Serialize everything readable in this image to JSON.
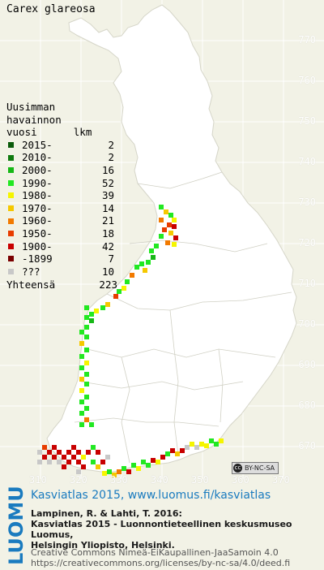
{
  "title": "Carex glareosa",
  "legend": {
    "header": [
      "Uusimman",
      "havainnon",
      "vuosi      lkm"
    ],
    "rows": [
      {
        "label": "2015-",
        "count": "2",
        "color": "#0a5a0a"
      },
      {
        "label": "2010-",
        "count": "2",
        "color": "#0f7a0f"
      },
      {
        "label": "2000-",
        "count": "16",
        "color": "#16b816"
      },
      {
        "label": "1990-",
        "count": "52",
        "color": "#22e822"
      },
      {
        "label": "1980-",
        "count": "39",
        "color": "#f5f500"
      },
      {
        "label": "1970-",
        "count": "14",
        "color": "#f5c800"
      },
      {
        "label": "1960-",
        "count": "21",
        "color": "#f27a00"
      },
      {
        "label": "1950-",
        "count": "18",
        "color": "#e83c00"
      },
      {
        "label": "1900-",
        "count": "42",
        "color": "#c80000"
      },
      {
        "label": "-1899",
        "count": "7",
        "color": "#7a0000"
      },
      {
        "label": "???",
        "count": "10",
        "color": "#c8c8c8"
      }
    ],
    "total_label": "Yhteensä",
    "total": "223"
  },
  "axes": {
    "y_labels": [
      "770",
      "760",
      "750",
      "740",
      "730",
      "720",
      "710",
      "700",
      "690",
      "680",
      "670"
    ],
    "x_labels": [
      "310",
      "320",
      "330",
      "340",
      "350",
      "360",
      "370"
    ]
  },
  "license_badge": "BY-NC-SA",
  "footer": {
    "brand": "LUOMUS",
    "headline": "Kasviatlas 2015, www.luomus.fi/kasviatlas",
    "citation_lines": [
      "Lampinen, R. & Lahti, T. 2016:",
      "Kasviatlas 2015 - Luonnontieteellinen keskusmuseo Luomus,",
      "Helsingin Yliopisto, Helsinki."
    ],
    "license_lines": [
      "Creative Commons Nimeä-EiKaupallinen-JaaSamoin 4.0",
      "https://creativecommons.org/licenses/by-nc-sa/4.0/deed.fi"
    ]
  },
  "colors": {
    "brand_blue": "#1a7bbf",
    "map_land": "#ffffff",
    "map_bg": "#f2f2e6"
  }
}
